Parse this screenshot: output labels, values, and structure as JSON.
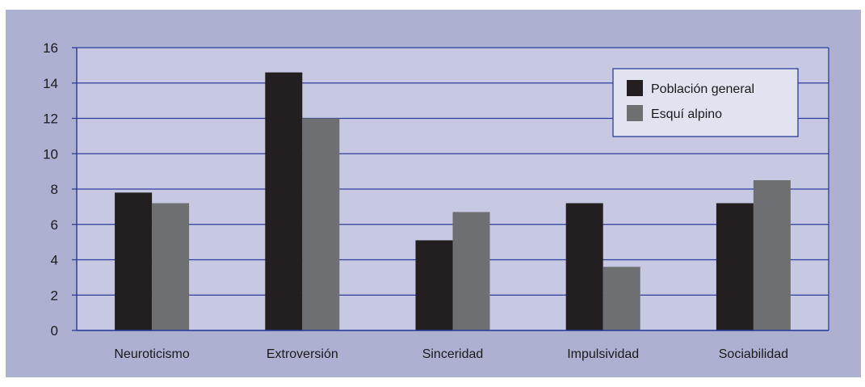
{
  "chart_data": {
    "type": "bar",
    "title": "",
    "xlabel": "",
    "ylabel": "",
    "categories": [
      "Neuroticismo",
      "Extroversión",
      "Sinceridad",
      "Impulsividad",
      "Sociabilidad"
    ],
    "series": [
      {
        "name": "Población general",
        "values": [
          7.8,
          14.6,
          5.1,
          7.2,
          7.2
        ],
        "color": "#231f20"
      },
      {
        "name": "Esquí alpino",
        "values": [
          7.2,
          12.0,
          6.7,
          3.6,
          8.5
        ],
        "color": "#6e6f72"
      }
    ],
    "ylim": [
      0,
      16
    ],
    "yticks": [
      "0",
      "2",
      "4",
      "6",
      "8",
      "10",
      "12",
      "14",
      "16"
    ],
    "grid": true,
    "legend_position": "top-right",
    "colors": {
      "background": "#aeb0d2",
      "plot_area": "#c7c8e1",
      "gridline": "#2b3f9e",
      "legend_bg": "#e2e3f0"
    }
  }
}
